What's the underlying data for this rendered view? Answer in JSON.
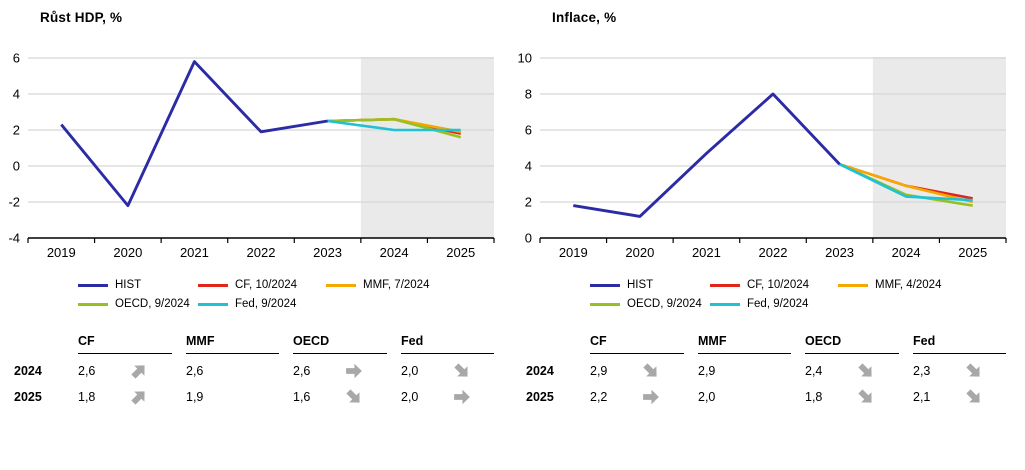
{
  "style": {
    "shade_color": "#eaeaea",
    "grid_color": "#d8d8d8",
    "axis_color": "#000000",
    "arrow_color": "#a8a8a8",
    "hist_color": "#2b2ba6",
    "cf_color": "#e1251b",
    "mmf_color": "#f6a800",
    "oecd_color": "#96c121",
    "fed_color": "#1fc1d3"
  },
  "figure": {
    "panels": [
      {
        "table": {
          "columns": [
            "CF",
            "MMF",
            "OECD",
            "Fed"
          ],
          "rows": [
            {
              "year": "2024",
              "cells": [
                {
                  "value": "2,6",
                  "arrow": "up-right"
                },
                {
                  "value": "2,6",
                  "arrow": ""
                },
                {
                  "value": "2,6",
                  "arrow": "right"
                },
                {
                  "value": "2,0",
                  "arrow": "down-right"
                }
              ]
            },
            {
              "year": "2025",
              "cells": [
                {
                  "value": "1,8",
                  "arrow": "up-right"
                },
                {
                  "value": "1,9",
                  "arrow": ""
                },
                {
                  "value": "1,6",
                  "arrow": "down-right"
                },
                {
                  "value": "2,0",
                  "arrow": "right"
                }
              ]
            }
          ]
        }
      },
      {
        "table": {
          "columns": [
            "CF",
            "MMF",
            "OECD",
            "Fed"
          ],
          "rows": [
            {
              "year": "2024",
              "cells": [
                {
                  "value": "2,9",
                  "arrow": "down-right"
                },
                {
                  "value": "2,9",
                  "arrow": ""
                },
                {
                  "value": "2,4",
                  "arrow": "down-right"
                },
                {
                  "value": "2,3",
                  "arrow": "down-right"
                }
              ]
            },
            {
              "year": "2025",
              "cells": [
                {
                  "value": "2,2",
                  "arrow": "right"
                },
                {
                  "value": "2,0",
                  "arrow": ""
                },
                {
                  "value": "1,8",
                  "arrow": "down-right"
                },
                {
                  "value": "2,1",
                  "arrow": "down-right"
                }
              ]
            }
          ]
        }
      }
    ]
  },
  "chart_data": [
    {
      "type": "line",
      "title": "Růst HDP, %",
      "x_labels": [
        "2019",
        "2020",
        "2021",
        "2022",
        "2023",
        "2024",
        "2025"
      ],
      "ylim": [
        -4,
        6
      ],
      "yticks": [
        6,
        4,
        2,
        0,
        -2,
        -4
      ],
      "grid": true,
      "legend_position": "bottom",
      "forecast_shade_from_boundary": 5,
      "series": [
        {
          "name": "HIST",
          "color": "#2b2ba6",
          "values": [
            2.3,
            -2.2,
            5.8,
            1.9,
            2.5,
            null,
            null
          ]
        },
        {
          "name": "CF, 10/2024",
          "color": "#e1251b",
          "values": [
            null,
            null,
            null,
            null,
            2.5,
            2.6,
            1.8
          ]
        },
        {
          "name": "MMF, 7/2024",
          "color": "#f6a800",
          "values": [
            null,
            null,
            null,
            null,
            2.5,
            2.6,
            1.9
          ]
        },
        {
          "name": "OECD, 9/2024",
          "color": "#96c121",
          "values": [
            null,
            null,
            null,
            null,
            2.5,
            2.6,
            1.6
          ]
        },
        {
          "name": "Fed, 9/2024",
          "color": "#1fc1d3",
          "values": [
            null,
            null,
            null,
            null,
            2.5,
            2.0,
            2.0
          ]
        }
      ]
    },
    {
      "type": "line",
      "title": "Inflace, %",
      "x_labels": [
        "2019",
        "2020",
        "2021",
        "2022",
        "2023",
        "2024",
        "2025"
      ],
      "ylim": [
        0,
        10
      ],
      "yticks": [
        10,
        8,
        6,
        4,
        2,
        0
      ],
      "grid": true,
      "legend_position": "bottom",
      "forecast_shade_from_boundary": 5,
      "series": [
        {
          "name": "HIST",
          "color": "#2b2ba6",
          "values": [
            1.8,
            1.2,
            4.7,
            8.0,
            4.1,
            null,
            null
          ]
        },
        {
          "name": "CF, 10/2024",
          "color": "#e1251b",
          "values": [
            null,
            null,
            null,
            null,
            4.1,
            2.9,
            2.2
          ]
        },
        {
          "name": "MMF, 4/2024",
          "color": "#f6a800",
          "values": [
            null,
            null,
            null,
            null,
            4.1,
            2.9,
            2.0
          ]
        },
        {
          "name": "OECD, 9/2024",
          "color": "#96c121",
          "values": [
            null,
            null,
            null,
            null,
            4.1,
            2.4,
            1.8
          ]
        },
        {
          "name": "Fed, 9/2024",
          "color": "#1fc1d3",
          "values": [
            null,
            null,
            null,
            null,
            4.1,
            2.3,
            2.1
          ]
        }
      ]
    }
  ]
}
